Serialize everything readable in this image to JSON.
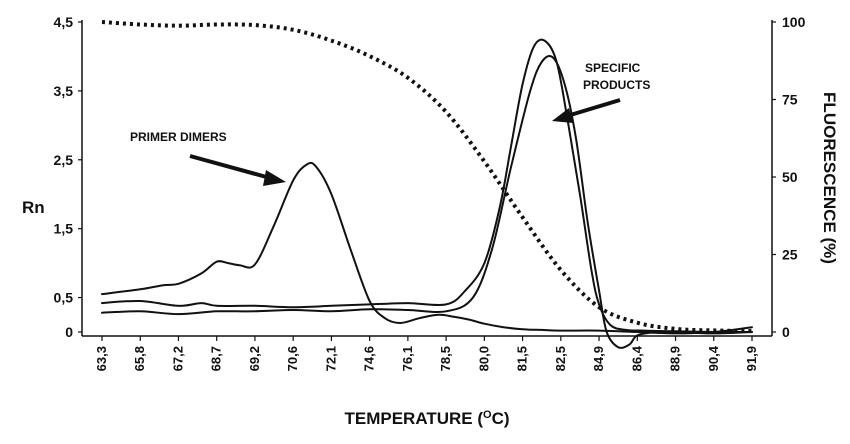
{
  "chart_data": {
    "type": "line",
    "xlabel": "TEMPERATURE (OC)",
    "xlabel_main": "TEMPERATURE (",
    "xlabel_sup": "O",
    "xlabel_unit": "C)",
    "ylabel_left": "Rn",
    "ylabel_right": "FLUORESCENCE (%)",
    "x_categories": [
      "63,3",
      "65,8",
      "67,2",
      "68,7",
      "69,2",
      "70,6",
      "72,1",
      "74,6",
      "76,1",
      "78,5",
      "80,0",
      "81,5",
      "82,5",
      "84,9",
      "86,4",
      "88,9",
      "90,4",
      "91,9"
    ],
    "y_left_ticks": [
      "4,5",
      "3,5",
      "2,5",
      "1,5",
      "0,5",
      "0"
    ],
    "y_left_tick_values": [
      4.5,
      3.5,
      2.5,
      1.5,
      0.5,
      0
    ],
    "y_left_range": [
      0,
      4.5
    ],
    "y_right_ticks": [
      "100",
      "75",
      "50",
      "25",
      "0"
    ],
    "y_right_tick_values": [
      100,
      75,
      50,
      25,
      0
    ],
    "y_right_range": [
      0,
      100
    ],
    "grid": false,
    "series": [
      {
        "axis": "left",
        "style": "solid",
        "points": [
          [
            0,
            0.55
          ],
          [
            1,
            0.62
          ],
          [
            1.6,
            0.68
          ],
          [
            2,
            0.7
          ],
          [
            2.6,
            0.85
          ],
          [
            3,
            1.02
          ],
          [
            3.3,
            1.0
          ],
          [
            3.6,
            0.97
          ],
          [
            4,
            0.98
          ],
          [
            4.5,
            1.55
          ],
          [
            5,
            2.2
          ],
          [
            5.35,
            2.43
          ],
          [
            5.6,
            2.4
          ],
          [
            6,
            2.0
          ],
          [
            6.5,
            1.2
          ],
          [
            7,
            0.45
          ],
          [
            7.4,
            0.2
          ],
          [
            7.8,
            0.13
          ],
          [
            8.3,
            0.2
          ],
          [
            8.8,
            0.25
          ],
          [
            9.2,
            0.22
          ],
          [
            9.6,
            0.18
          ],
          [
            10,
            0.12
          ],
          [
            10.5,
            0.07
          ],
          [
            11,
            0.04
          ],
          [
            11.5,
            0.03
          ],
          [
            12,
            0.02
          ],
          [
            13,
            0.02
          ],
          [
            14,
            0.0
          ],
          [
            15,
            -0.02
          ],
          [
            16,
            0.0
          ],
          [
            17,
            0.07
          ]
        ]
      },
      {
        "axis": "left",
        "style": "solid",
        "points": [
          [
            0,
            0.42
          ],
          [
            1,
            0.45
          ],
          [
            2,
            0.38
          ],
          [
            2.6,
            0.42
          ],
          [
            3,
            0.38
          ],
          [
            4,
            0.38
          ],
          [
            5,
            0.36
          ],
          [
            6,
            0.38
          ],
          [
            7,
            0.4
          ],
          [
            8,
            0.42
          ],
          [
            9,
            0.4
          ],
          [
            9.5,
            0.6
          ],
          [
            10,
            1.0
          ],
          [
            10.4,
            1.8
          ],
          [
            10.7,
            2.7
          ],
          [
            11.0,
            3.6
          ],
          [
            11.3,
            4.15
          ],
          [
            11.6,
            4.22
          ],
          [
            11.9,
            3.9
          ],
          [
            12.2,
            3.0
          ],
          [
            12.5,
            2.0
          ],
          [
            12.8,
            0.9
          ],
          [
            13.0,
            0.4
          ],
          [
            13.3,
            0.1
          ],
          [
            13.7,
            0.03
          ],
          [
            14.2,
            0.02
          ],
          [
            15,
            0.01
          ],
          [
            16,
            0.0
          ],
          [
            17,
            0.0
          ]
        ]
      },
      {
        "axis": "left",
        "style": "solid",
        "points": [
          [
            0,
            0.28
          ],
          [
            1,
            0.3
          ],
          [
            2,
            0.26
          ],
          [
            3,
            0.3
          ],
          [
            4,
            0.3
          ],
          [
            5,
            0.32
          ],
          [
            6,
            0.3
          ],
          [
            7,
            0.33
          ],
          [
            8,
            0.32
          ],
          [
            9,
            0.3
          ],
          [
            9.7,
            0.5
          ],
          [
            10.2,
            1.2
          ],
          [
            10.7,
            2.4
          ],
          [
            11.2,
            3.5
          ],
          [
            11.5,
            3.92
          ],
          [
            11.8,
            3.98
          ],
          [
            12.1,
            3.6
          ],
          [
            12.4,
            2.8
          ],
          [
            12.7,
            1.6
          ],
          [
            13.0,
            0.6
          ],
          [
            13.2,
            0.0
          ],
          [
            13.5,
            -0.22
          ],
          [
            13.8,
            -0.18
          ],
          [
            14.0,
            -0.05
          ],
          [
            14.5,
            0.0
          ],
          [
            15,
            0.0
          ],
          [
            16,
            -0.02
          ],
          [
            17,
            0.0
          ]
        ]
      },
      {
        "axis": "right",
        "style": "dotted",
        "points": [
          [
            0,
            100
          ],
          [
            1,
            99.2
          ],
          [
            2,
            98.8
          ],
          [
            3,
            99.2
          ],
          [
            4,
            99.0
          ],
          [
            5,
            97.5
          ],
          [
            6,
            94.0
          ],
          [
            7,
            89.0
          ],
          [
            8,
            82.0
          ],
          [
            9,
            71.0
          ],
          [
            10,
            55.0
          ],
          [
            11,
            37.0
          ],
          [
            12,
            20.0
          ],
          [
            13,
            8.0
          ],
          [
            14,
            3.0
          ],
          [
            15,
            1.0
          ],
          [
            16,
            0.5
          ],
          [
            17,
            0.3
          ]
        ]
      }
    ],
    "annotations": [
      {
        "text": "PRIMER DIMERS"
      },
      {
        "text": "SPECIFIC"
      },
      {
        "text": "PRODUCTS"
      }
    ]
  }
}
